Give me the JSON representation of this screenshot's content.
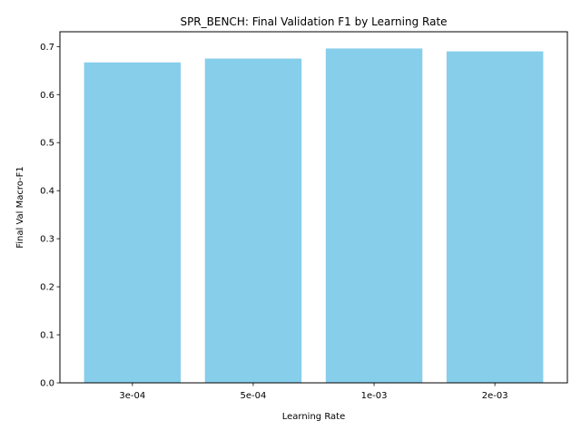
{
  "chart_data": {
    "type": "bar",
    "title": "SPR_BENCH: Final Validation F1 by Learning Rate",
    "xlabel": "Learning Rate",
    "ylabel": "Final Val Macro-F1",
    "categories": [
      "3e-04",
      "5e-04",
      "1e-03",
      "2e-03"
    ],
    "values": [
      0.667,
      0.675,
      0.696,
      0.69
    ],
    "ylim": [
      0,
      0.7308
    ],
    "yticks": [
      0.0,
      0.1,
      0.2,
      0.3,
      0.4,
      0.5,
      0.6,
      0.7
    ],
    "ytick_labels": [
      "0.0",
      "0.1",
      "0.2",
      "0.3",
      "0.4",
      "0.5",
      "0.6",
      "0.7"
    ],
    "bar_color": "#87ceeb",
    "grid": false,
    "legend": "none"
  }
}
